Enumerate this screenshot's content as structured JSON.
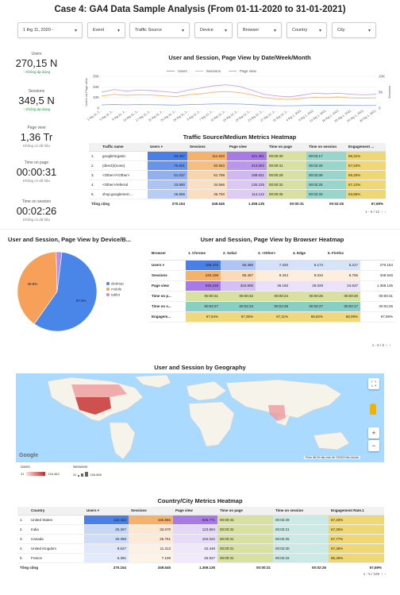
{
  "page": {
    "title": "Case 4: GA4 Data Sample Analysis (From 01-11-2020 to 31-01-2021)"
  },
  "filters": [
    {
      "label": "1 thg 11, 2020 -"
    },
    {
      "label": "Event"
    },
    {
      "label": "Traffic Source"
    },
    {
      "label": "Device"
    },
    {
      "label": "Browser"
    },
    {
      "label": "Country"
    },
    {
      "label": "City"
    }
  ],
  "scorecards": [
    {
      "label": "Users",
      "value": "270,15 N",
      "sub": "↑ Không áp dụng"
    },
    {
      "label": "Sessions",
      "value": "349,5 N",
      "sub": "↑ Không áp dụng"
    },
    {
      "label": "Page view",
      "value": "1,36 Tr",
      "sub": "Không có dữ liệu"
    },
    {
      "label": "Time on page",
      "value": "00:00:31",
      "sub": "Không có dữ liệu"
    },
    {
      "label": "Time on session",
      "value": "00:02:26",
      "sub": "Không có dữ liệu"
    }
  ],
  "colors": {
    "users": "#8fa8f7",
    "sessions": "#f5b36b",
    "pageview": "#c9a2e8",
    "blue_dark": "#4a7fe6",
    "blue_light": "#e8eefc",
    "orange": "#f4b26b",
    "purple": "#a77ae6",
    "green": "#cfd98a",
    "teal": "#6cc3b4",
    "yellow": "#ecd05c",
    "pie_desktop": "#4a86e8",
    "pie_mobile": "#f6a05a",
    "pie_tablet": "#b490e8"
  },
  "chart_data": [
    {
      "type": "line",
      "title": "User and Session, Page View by Date/Week/Month",
      "ylabel": "Users và Page view",
      "y2label": "Sessions",
      "ylim": [
        0,
        30000
      ],
      "yticks": [
        "0",
        "10K",
        "20K",
        "30K"
      ],
      "y2ticks": [
        "0",
        "5K",
        "10K"
      ],
      "x": [
        "1 thg 11, 2...",
        "5 thg 11, 2...",
        "9 thg 11, 2...",
        "13 thg 11, 2...",
        "17 thg 11, 2...",
        "21 thg 11, 2...",
        "25 thg 11, 2...",
        "29 thg 11, 2...",
        "3 thg 12, 2...",
        "7 thg 12, 2...",
        "11 thg 12, 2...",
        "15 thg 12, 2...",
        "19 thg 12, 2...",
        "23 thg 12, 2...",
        "27 thg 12, 2...",
        "31 thg 12, 2...",
        "4 thg 1, 2021",
        "8 thg 1, 2021",
        "12 thg 1, 2021",
        "16 thg 1, 2021",
        "20 thg 1, 2021",
        "24 thg 1, 2021",
        "28 thg 1, 2021"
      ],
      "series": [
        {
          "name": "Users",
          "values": [
            2900,
            3400,
            3100,
            3300,
            3200,
            3000,
            2800,
            3300,
            3500,
            3900,
            4000,
            3800,
            3300,
            2600,
            2200,
            2100,
            2300,
            2700,
            2600,
            2700,
            2500,
            2400,
            2500
          ]
        },
        {
          "name": "Sessions",
          "values": [
            3800,
            4300,
            4000,
            4200,
            4100,
            3800,
            3600,
            4200,
            4500,
            5000,
            5200,
            4900,
            4200,
            3300,
            2900,
            2700,
            3000,
            3400,
            3300,
            3500,
            3200,
            3100,
            3200
          ]
        },
        {
          "name": "Page view",
          "values": [
            15000,
            17500,
            16000,
            17000,
            16500,
            15500,
            14500,
            17000,
            19000,
            21000,
            22000,
            20500,
            17000,
            13000,
            11500,
            10500,
            12000,
            14000,
            13500,
            14000,
            13000,
            12500,
            13000
          ]
        }
      ]
    },
    {
      "type": "table",
      "title": "Traffic Source/Medium Metrics Heatmap",
      "columns": [
        "Traffic name",
        "Users ▾",
        "Sessions",
        "Page view",
        "Time on page",
        "Time on session",
        "Engagement ..."
      ],
      "rows": [
        [
          "1.",
          "google/organic",
          "93.497",
          "111.520",
          "421.391",
          "00:00:30",
          "00:02:17",
          "68,31%"
        ],
        [
          "2.",
          "(direct)/(none)",
          "75.601",
          "92.653",
          "313.683",
          "00:00:31",
          "00:02:26",
          "67,53%"
        ],
        [
          "3.",
          "<Other>/<Other>",
          "51.037",
          "51.798",
          "188.621",
          "00:00:29",
          "00:02:09",
          "69,25%"
        ],
        [
          "4.",
          "<Other>/referral",
          "33.890",
          "34.566",
          "130.225",
          "00:00:32",
          "00:02:25",
          "67,12%"
        ],
        [
          "5.",
          "shop.googlemerc...",
          "26.865",
          "36.750",
          "114.142",
          "00:00:35",
          "00:02:33",
          "63,86%"
        ]
      ],
      "total": [
        "Tổng cộng",
        "270.154",
        "349.545",
        "1.359.135",
        "00:00:31",
        "00:02:26",
        "67,69%"
      ],
      "pager": "1 - 5 / 12"
    },
    {
      "type": "pie",
      "title": "User and Session, Page View by Device/B...",
      "categories": [
        "desktop",
        "mobile",
        "tablet"
      ],
      "values": [
        57.9,
        39.8,
        2.3
      ],
      "labels": [
        "57.9%",
        "39.8%",
        ""
      ]
    },
    {
      "type": "table",
      "title": "User and Session, Page View by Browser Heatmap",
      "columns": [
        "Browser",
        "1. Chrome",
        "2. Safari",
        "3. <Other>",
        "4. Edge",
        "5. Firefox",
        ""
      ],
      "rows": [
        [
          "Users ▾",
          "185.475",
          "56.386",
          "7.320",
          "6.174",
          "5.217",
          "270.154"
        ],
        [
          "Sessions",
          "240.198",
          "85.457",
          "9.344",
          "8.034",
          "6.756",
          "349.545"
        ],
        [
          "Page view",
          "926.219",
          "324.905",
          "36.193",
          "30.029",
          "24.637",
          "1.359.135"
        ],
        [
          "Time on p...",
          "00:00:31",
          "00:00:32",
          "00:00:24",
          "00:00:26",
          "00:00:30",
          "00:00:31"
        ],
        [
          "Time on s...",
          "00:02:27",
          "00:02:23",
          "00:02:29",
          "00:02:27",
          "00:02:17",
          "00:02:26"
        ],
        [
          "Engagem...",
          "67,54%",
          "67,35%",
          "67,11%",
          "68,82%",
          "68,09%",
          "67,69%"
        ]
      ],
      "pager": "1 - 5 / 6"
    },
    {
      "type": "map",
      "title": "User and Session by Geography",
      "legend": {
        "users_label": "Users",
        "users_min": "31",
        "users_max": "118.463",
        "sessions_label": "Sessions",
        "sessions_min": "31",
        "sessions_max": "155.865"
      },
      "attribution": "Phím tắt   Dữ liệu bản đồ ©2025   Điều khoản",
      "brand": "Google"
    },
    {
      "type": "table",
      "title": "Country/City Metrics Heatmap",
      "columns": [
        "Country",
        "Users ▾",
        "Sessions",
        "Page view",
        "Time on page",
        "Time on session",
        "Engagement Rate.1"
      ],
      "rows": [
        [
          "1.",
          "United States",
          "118.463",
          "155.865",
          "605.771",
          "00:00:33",
          "00:02:29",
          "67,33%"
        ],
        [
          "2.",
          "India",
          "25.367",
          "33.670",
          "123.884",
          "00:00:32",
          "00:02:21",
          "67,25%"
        ],
        [
          "3.",
          "Canada",
          "20.368",
          "26.751",
          "102.022",
          "00:00:31",
          "00:02:25",
          "67,77%"
        ],
        [
          "4.",
          "United Kingdom",
          "8.527",
          "11.313",
          "42.448",
          "00:00:31",
          "00:02:30",
          "67,36%"
        ],
        [
          "5.",
          "France",
          "5.381",
          "7.109",
          "25.927",
          "00:00:31",
          "00:02:15",
          "66,46%"
        ]
      ],
      "total": [
        "Tổng cộng",
        "270.154",
        "349.545",
        "1.359.135",
        "00:00:31",
        "00:02:26",
        "67,69%"
      ],
      "pager": "1 - 5 / 109"
    }
  ]
}
